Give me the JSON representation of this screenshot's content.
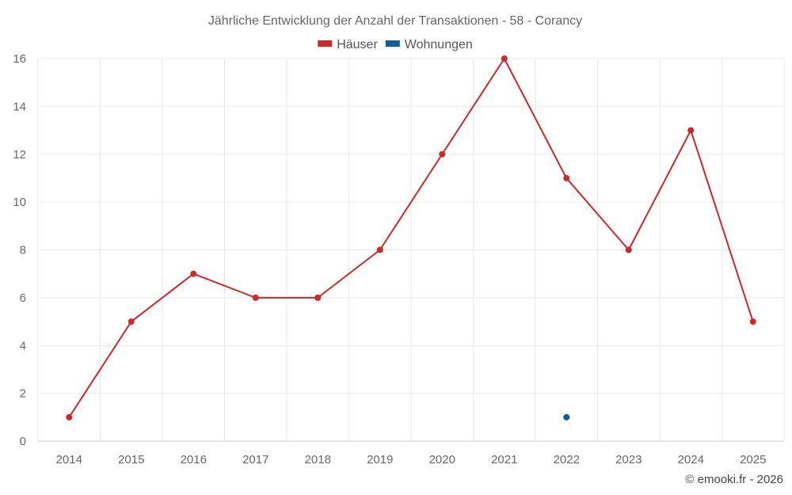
{
  "chart_data": {
    "type": "line",
    "title": "Jährliche Entwicklung der Anzahl der Transaktionen - 58 - Corancy",
    "xlabel": "",
    "ylabel": "",
    "categories": [
      "2014",
      "2015",
      "2016",
      "2017",
      "2018",
      "2019",
      "2020",
      "2021",
      "2022",
      "2023",
      "2024",
      "2025"
    ],
    "ylim": [
      0,
      16
    ],
    "yticks": [
      0,
      2,
      4,
      6,
      8,
      10,
      12,
      14,
      16
    ],
    "grid": true,
    "legend_position": "top-center",
    "series": [
      {
        "name": "Häuser",
        "color": "#d32626",
        "values": [
          1,
          5,
          7,
          6,
          6,
          8,
          12,
          16,
          11,
          8,
          13,
          5
        ]
      },
      {
        "name": "Wohnungen",
        "color": "#0b5fa0",
        "values": [
          null,
          null,
          null,
          null,
          null,
          null,
          null,
          null,
          1,
          null,
          null,
          null
        ]
      }
    ]
  },
  "credit": "© emooki.fr - 2026"
}
